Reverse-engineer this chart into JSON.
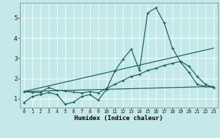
{
  "title": "",
  "xlabel": "Humidex (Indice chaleur)",
  "background_color": "#c5e8e8",
  "grid_color": "#ffffff",
  "line_color": "#1a5f5f",
  "xlim": [
    -0.5,
    23.5
  ],
  "ylim": [
    0.55,
    5.75
  ],
  "xticks": [
    0,
    1,
    2,
    3,
    4,
    5,
    6,
    7,
    8,
    9,
    10,
    11,
    12,
    13,
    14,
    15,
    16,
    17,
    18,
    19,
    20,
    21,
    22,
    23
  ],
  "yticks": [
    1,
    2,
    3,
    4,
    5
  ],
  "line1_x": [
    0,
    1,
    2,
    3,
    4,
    5,
    6,
    7,
    8,
    9,
    10,
    11,
    12,
    13,
    14,
    15,
    16,
    17,
    18,
    19,
    20,
    21,
    22,
    23
  ],
  "line1_y": [
    0.8,
    1.1,
    1.2,
    1.3,
    1.2,
    0.72,
    0.82,
    1.1,
    1.2,
    0.92,
    1.45,
    2.35,
    2.95,
    3.45,
    2.4,
    5.25,
    5.5,
    4.75,
    3.5,
    2.8,
    2.3,
    1.7,
    1.6,
    1.55
  ],
  "line2_x": [
    0,
    1,
    2,
    3,
    4,
    5,
    6,
    7,
    8,
    9,
    10,
    11,
    12,
    13,
    14,
    15,
    16,
    17,
    18,
    19,
    20,
    21,
    22,
    23
  ],
  "line2_y": [
    1.35,
    1.3,
    1.3,
    1.55,
    1.4,
    1.38,
    1.32,
    1.28,
    1.35,
    1.28,
    1.5,
    1.7,
    1.9,
    2.1,
    2.2,
    2.4,
    2.5,
    2.65,
    2.75,
    2.85,
    2.6,
    2.1,
    1.7,
    1.55
  ],
  "line3_x": [
    0,
    23
  ],
  "line3_y": [
    1.35,
    1.6
  ],
  "line4_x": [
    0,
    23
  ],
  "line4_y": [
    1.35,
    3.5
  ]
}
